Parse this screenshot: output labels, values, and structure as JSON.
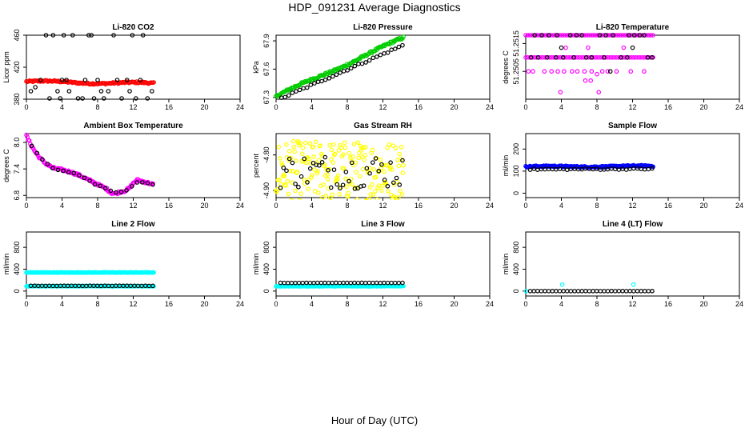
{
  "page": {
    "title": "HDP_091231  Average Diagnostics",
    "xlabel": "Hour of Day (UTC)"
  },
  "colors": {
    "axis": "#000000",
    "red": "#ff0000",
    "green": "#00cc00",
    "magenta": "#ff00ff",
    "yellow": "#ffff00",
    "blue": "#0000ff",
    "cyan": "#00ffff",
    "black": "#000000"
  },
  "chart_data": [
    {
      "type": "scatter",
      "title": "Li-820 CO2",
      "ylabel": "Licor ppm",
      "xlim": [
        0,
        24
      ],
      "xticks": [
        "0",
        "4",
        "8",
        "12",
        "16",
        "20",
        "24"
      ],
      "ylim": [
        380,
        460
      ],
      "yticks": [
        {
          "v": 380,
          "label": "380"
        },
        {
          "v": 420,
          "label": "420"
        },
        {
          "v": 460,
          "label": "460"
        }
      ],
      "series": [
        {
          "name": "average",
          "color": "#ff0000",
          "gen": {
            "from": 0,
            "to": 14.3,
            "n": 120,
            "y0": 402,
            "y1": 399.5,
            "amp": 1.2,
            "noise": 1.0
          }
        },
        {
          "name": "sample",
          "color": "#000000",
          "points": [
            [
              0.5,
              390
            ],
            [
              1.0,
              395
            ],
            [
              1.6,
              404
            ],
            [
              2.2,
              460
            ],
            [
              2.6,
              381
            ],
            [
              3.0,
              460
            ],
            [
              3.5,
              390
            ],
            [
              3.8,
              381
            ],
            [
              4.0,
              404
            ],
            [
              4.2,
              460
            ],
            [
              4.5,
              404
            ],
            [
              4.8,
              390
            ],
            [
              5.2,
              460
            ],
            [
              5.8,
              381
            ],
            [
              6.3,
              381
            ],
            [
              6.6,
              404
            ],
            [
              7.0,
              460
            ],
            [
              7.3,
              460
            ],
            [
              7.6,
              381
            ],
            [
              8.0,
              404
            ],
            [
              8.4,
              390
            ],
            [
              8.7,
              381
            ],
            [
              9.2,
              390
            ],
            [
              9.8,
              460
            ],
            [
              10.2,
              404
            ],
            [
              10.7,
              381
            ],
            [
              11.3,
              404
            ],
            [
              11.6,
              390
            ],
            [
              11.9,
              460
            ],
            [
              12.3,
              381
            ],
            [
              12.8,
              404
            ],
            [
              13.1,
              460
            ],
            [
              13.6,
              381
            ],
            [
              14.1,
              390
            ]
          ]
        }
      ]
    },
    {
      "type": "scatter",
      "title": "Li-820 Pressure",
      "ylabel": "kPa",
      "xlim": [
        0,
        24
      ],
      "xticks": [
        "0",
        "4",
        "8",
        "12",
        "16",
        "20",
        "24"
      ],
      "ylim": [
        67.28,
        67.96
      ],
      "yticks": [
        {
          "v": 67.3,
          "label": "67.3"
        },
        {
          "v": 67.6,
          "label": "67.6"
        },
        {
          "v": 67.9,
          "label": "67.9"
        }
      ],
      "series": [
        {
          "name": "average",
          "color": "#00cc00",
          "gen": {
            "from": 0,
            "to": 14.3,
            "n": 130,
            "y0": 67.31,
            "y1": 67.93,
            "amp": 0.012,
            "noise": 0.012
          }
        },
        {
          "name": "sample",
          "color": "#000000",
          "gen": {
            "from": 0.6,
            "to": 14.2,
            "n": 34,
            "y0": 67.29,
            "y1": 67.85,
            "amp": 0.0,
            "noise": 0.01
          }
        }
      ]
    },
    {
      "type": "scatter",
      "title": "Li-820 Temperature",
      "ylabel": "degrees C",
      "xlim": [
        0,
        24
      ],
      "xticks": [
        "0",
        "4",
        "8",
        "12",
        "16",
        "20",
        "24"
      ],
      "ylim": [
        51.2495,
        51.2518
      ],
      "yticks": [
        {
          "v": 51.2505,
          "label": "51.2505"
        },
        {
          "v": 51.2515,
          "label": "51.2515"
        }
      ],
      "series": [
        {
          "name": "average-high",
          "color": "#ff00ff",
          "gen": {
            "from": 0,
            "to": 14.3,
            "n": 60,
            "y0": 51.2518,
            "y1": 51.2518,
            "amp": 0,
            "noise": 0
          }
        },
        {
          "name": "average-mid",
          "color": "#ff00ff",
          "gen": {
            "from": 0,
            "to": 14.3,
            "n": 60,
            "y0": 51.251,
            "y1": 51.251,
            "amp": 0,
            "noise": 0
          }
        },
        {
          "name": "average-low",
          "color": "#ff00ff",
          "points": [
            [
              0.3,
              51.2505
            ],
            [
              0.8,
              51.2505
            ],
            [
              2.1,
              51.2505
            ],
            [
              2.9,
              51.2505
            ],
            [
              3.6,
              51.2505
            ],
            [
              4.3,
              51.2505
            ],
            [
              5.2,
              51.2505
            ],
            [
              5.8,
              51.2505
            ],
            [
              6.6,
              51.2505
            ],
            [
              7.4,
              51.2505
            ],
            [
              8.6,
              51.2505
            ],
            [
              10.2,
              51.2505
            ],
            [
              11.8,
              51.2505
            ],
            [
              13.3,
              51.2505
            ],
            [
              6.7,
              51.25017
            ],
            [
              8.0,
              51.2504
            ],
            [
              9.2,
              51.2505
            ],
            [
              7.3,
              51.25017
            ],
            [
              3.9,
              51.24975
            ],
            [
              8.2,
              51.24975
            ],
            [
              4.5,
              51.25135
            ],
            [
              7.0,
              51.25135
            ],
            [
              11.0,
              51.25135
            ]
          ]
        },
        {
          "name": "sample-high",
          "color": "#000000",
          "points": [
            [
              1.0,
              51.2518
            ],
            [
              1.8,
              51.2518
            ],
            [
              2.6,
              51.2518
            ],
            [
              3.5,
              51.2518
            ],
            [
              5.0,
              51.2518
            ],
            [
              5.7,
              51.2518
            ],
            [
              6.3,
              51.2518
            ],
            [
              8.3,
              51.2518
            ],
            [
              9.0,
              51.2518
            ],
            [
              9.8,
              51.2518
            ],
            [
              11.6,
              51.2518
            ],
            [
              12.2,
              51.2518
            ],
            [
              12.8,
              51.2518
            ],
            [
              13.3,
              51.2518
            ]
          ]
        },
        {
          "name": "sample-mid",
          "color": "#000000",
          "points": [
            [
              0.6,
              51.251
            ],
            [
              1.4,
              51.251
            ],
            [
              2.4,
              51.251
            ],
            [
              3.4,
              51.251
            ],
            [
              4.2,
              51.251
            ],
            [
              5.4,
              51.251
            ],
            [
              6.8,
              51.251
            ],
            [
              7.4,
              51.251
            ],
            [
              8.8,
              51.251
            ],
            [
              10.7,
              51.251
            ],
            [
              11.4,
              51.251
            ],
            [
              13.7,
              51.251
            ],
            [
              14.2,
              51.251
            ],
            [
              4.0,
              51.25135
            ],
            [
              12.0,
              51.25135
            ],
            [
              9.5,
              51.2505
            ]
          ]
        }
      ]
    },
    {
      "type": "scatter",
      "title": "Ambient Box Temperature",
      "ylabel": "degrees C",
      "xlim": [
        0,
        24
      ],
      "xticks": [
        "0",
        "4",
        "8",
        "12",
        "16",
        "20",
        "24"
      ],
      "ylim": [
        6.75,
        8.2
      ],
      "yticks": [
        {
          "v": 6.8,
          "label": "6.8"
        },
        {
          "v": 7.4,
          "label": "7.4"
        },
        {
          "v": 8.0,
          "label": "8.0"
        }
      ],
      "series": [
        {
          "name": "average",
          "color": "#ff00ff",
          "curve": [
            [
              0.0,
              8.15
            ],
            [
              0.5,
              7.95
            ],
            [
              1.0,
              7.78
            ],
            [
              1.5,
              7.65
            ],
            [
              2.0,
              7.55
            ],
            [
              2.5,
              7.48
            ],
            [
              3.0,
              7.42
            ],
            [
              3.5,
              7.4
            ],
            [
              4.0,
              7.38
            ],
            [
              5.0,
              7.33
            ],
            [
              6.0,
              7.25
            ],
            [
              7.0,
              7.15
            ],
            [
              8.0,
              7.05
            ],
            [
              8.5,
              7.0
            ],
            [
              9.0,
              6.95
            ],
            [
              9.5,
              6.86
            ],
            [
              10.0,
              6.84
            ],
            [
              10.5,
              6.88
            ],
            [
              11.0,
              6.9
            ],
            [
              11.5,
              6.95
            ],
            [
              12.0,
              7.07
            ],
            [
              12.4,
              7.15
            ],
            [
              12.8,
              7.13
            ],
            [
              13.4,
              7.1
            ],
            [
              14.2,
              7.05
            ]
          ],
          "n": 130,
          "noise": 0.025
        },
        {
          "name": "sample",
          "color": "#000000",
          "curve": [
            [
              0.6,
              7.92
            ],
            [
              1.2,
              7.75
            ],
            [
              1.8,
              7.62
            ],
            [
              2.4,
              7.5
            ],
            [
              3.0,
              7.42
            ],
            [
              3.6,
              7.37
            ],
            [
              4.2,
              7.35
            ],
            [
              4.8,
              7.33
            ],
            [
              5.4,
              7.3
            ],
            [
              6.0,
              7.25
            ],
            [
              6.6,
              7.18
            ],
            [
              7.2,
              7.12
            ],
            [
              7.8,
              7.04
            ],
            [
              8.4,
              7.0
            ],
            [
              9.0,
              6.96
            ],
            [
              9.6,
              6.88
            ],
            [
              10.2,
              6.86
            ],
            [
              10.8,
              6.88
            ],
            [
              11.4,
              6.92
            ],
            [
              12.0,
              7.05
            ],
            [
              12.6,
              7.1
            ],
            [
              13.2,
              7.08
            ],
            [
              13.8,
              7.07
            ],
            [
              14.2,
              7.05
            ]
          ],
          "n": 24,
          "noise": 0.01
        }
      ]
    },
    {
      "type": "scatter",
      "title": "Gas Stream RH",
      "ylabel": "percent",
      "xlim": [
        0,
        24
      ],
      "xticks": [
        "0",
        "4",
        "8",
        "12",
        "16",
        "20",
        "24"
      ],
      "ylim": [
        -4.92,
        -4.74
      ],
      "yticks": [
        {
          "v": -4.9,
          "label": "-4.90"
        },
        {
          "v": -4.8,
          "label": "-4.80"
        }
      ],
      "series": [
        {
          "name": "average",
          "color": "#ffff00",
          "gen": {
            "from": 0,
            "to": 14.3,
            "n": 200,
            "y0": -4.845,
            "y1": -4.845,
            "amp": 0.0,
            "noise": 0.085
          }
        },
        {
          "name": "sample",
          "color": "#000000",
          "gen": {
            "from": 0.5,
            "to": 14.2,
            "n": 42,
            "y0": -4.845,
            "y1": -4.845,
            "amp": 0.0,
            "noise": 0.05
          }
        }
      ]
    },
    {
      "type": "scatter",
      "title": "Sample Flow",
      "ylabel": "ml/min",
      "xlim": [
        0,
        24
      ],
      "xticks": [
        "0",
        "4",
        "8",
        "12",
        "16",
        "20",
        "24"
      ],
      "ylim": [
        -20,
        270
      ],
      "yticks": [
        {
          "v": 0,
          "label": "0"
        },
        {
          "v": 100,
          "label": "100"
        },
        {
          "v": 200,
          "label": "200"
        }
      ],
      "series": [
        {
          "name": "average",
          "color": "#0000ff",
          "gen": {
            "from": 0,
            "to": 14.3,
            "n": 150,
            "y0": 120,
            "y1": 122,
            "amp": 2,
            "noise": 3
          }
        },
        {
          "name": "sample",
          "color": "#000000",
          "gen": {
            "from": 0.5,
            "to": 14.2,
            "n": 34,
            "y0": 108,
            "y1": 110,
            "amp": 0,
            "noise": 3
          }
        }
      ]
    },
    {
      "type": "scatter",
      "title": "Line 2 Flow",
      "ylabel": "ml/min",
      "xlim": [
        0,
        24
      ],
      "xticks": [
        "0",
        "4",
        "8",
        "12",
        "16",
        "20",
        "24"
      ],
      "ylim": [
        -90,
        1080
      ],
      "yticks": [
        {
          "v": 0,
          "label": "0"
        },
        {
          "v": 400,
          "label": "400"
        },
        {
          "v": 800,
          "label": "800"
        }
      ],
      "series": [
        {
          "name": "average",
          "color": "#00ffff",
          "gen": {
            "from": 0,
            "to": 14.3,
            "n": 150,
            "y0": 340,
            "y1": 340,
            "amp": 0,
            "noise": 4
          }
        },
        {
          "name": "average-low",
          "color": "#00ffff",
          "gen": {
            "from": 0,
            "to": 14.3,
            "n": 150,
            "y0": 90,
            "y1": 90,
            "amp": 0,
            "noise": 4
          }
        },
        {
          "name": "sample",
          "color": "#000000",
          "gen": {
            "from": 0.5,
            "to": 14.2,
            "n": 34,
            "y0": 95,
            "y1": 95,
            "amp": 0,
            "noise": 2
          }
        }
      ]
    },
    {
      "type": "scatter",
      "title": "Line 3 Flow",
      "ylabel": "ml/min",
      "xlim": [
        0,
        24
      ],
      "xticks": [
        "0",
        "4",
        "8",
        "12",
        "16",
        "20",
        "24"
      ],
      "ylim": [
        -90,
        1080
      ],
      "yticks": [
        {
          "v": 0,
          "label": "0"
        },
        {
          "v": 400,
          "label": "400"
        },
        {
          "v": 800,
          "label": "800"
        }
      ],
      "series": [
        {
          "name": "average",
          "color": "#00ffff",
          "gen": {
            "from": 0,
            "to": 14.3,
            "n": 150,
            "y0": 90,
            "y1": 90,
            "amp": 0,
            "noise": 5
          }
        },
        {
          "name": "sample",
          "color": "#000000",
          "gen": {
            "from": 0.5,
            "to": 14.2,
            "n": 34,
            "y0": 150,
            "y1": 150,
            "amp": 0,
            "noise": 2
          }
        }
      ]
    },
    {
      "type": "scatter",
      "title": "Line 4 (LT) Flow",
      "ylabel": "ml/min",
      "xlim": [
        0,
        24
      ],
      "xticks": [
        "0",
        "4",
        "8",
        "12",
        "16",
        "20",
        "24"
      ],
      "ylim": [
        -90,
        1080
      ],
      "yticks": [
        {
          "v": 0,
          "label": "0"
        },
        {
          "v": 400,
          "label": "400"
        },
        {
          "v": 800,
          "label": "800"
        }
      ],
      "series": [
        {
          "name": "average",
          "color": "#00ffff",
          "points": [
            [
              0.05,
              0
            ],
            [
              4.1,
              120
            ],
            [
              12.1,
              120
            ]
          ]
        },
        {
          "name": "sample",
          "color": "#000000",
          "gen": {
            "from": 0.5,
            "to": 14.2,
            "n": 34,
            "y0": 0,
            "y1": 0,
            "amp": 0,
            "noise": 1
          }
        }
      ]
    }
  ]
}
